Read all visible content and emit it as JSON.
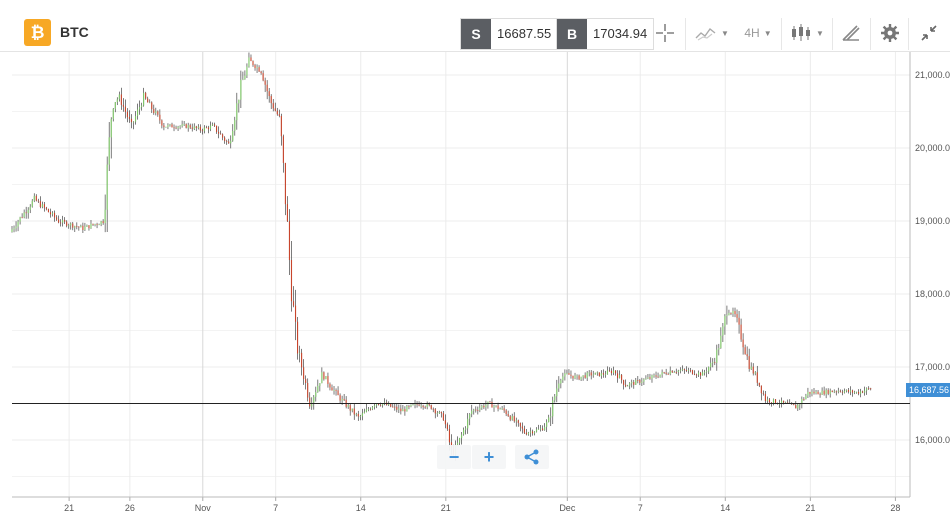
{
  "toolbar": {
    "logo_glyph": "₿",
    "symbol": "BTC",
    "sell_tag": "S",
    "sell_price": "16687.55",
    "buy_tag": "B",
    "buy_price": "17034.94",
    "timeframe": "4H",
    "icons": [
      "crosshair-icon",
      "compare-icon",
      "timeframe-selector",
      "candlestick-icon",
      "drawing-icon",
      "settings-icon",
      "collapse-icon"
    ]
  },
  "zoom": {
    "minus": "−",
    "plus": "+"
  },
  "current_price_label": "16,687.56",
  "chart_data": {
    "type": "candlestick",
    "x_ticks": [
      {
        "label": "21",
        "day": -11
      },
      {
        "label": "26",
        "day": -6
      },
      {
        "label": "Nov",
        "day": 0
      },
      {
        "label": "7",
        "day": 6
      },
      {
        "label": "14",
        "day": 13
      },
      {
        "label": "21",
        "day": 20
      },
      {
        "label": "Dec",
        "day": 30
      },
      {
        "label": "7",
        "day": 36
      },
      {
        "label": "14",
        "day": 43
      },
      {
        "label": "21",
        "day": 50
      },
      {
        "label": "28",
        "day": 57
      }
    ],
    "y_ticks": [
      "16,000.00",
      "17,000.00",
      "18,000.00",
      "19,000.00",
      "20,000.00",
      "21,000.00"
    ],
    "ylim": [
      15200,
      21300
    ],
    "xlim_days": [
      -15.7,
      58.2
    ],
    "horizontal_line": 16500,
    "current_price": 16687.56,
    "colors": {
      "up": "#7cc665",
      "down": "#c8452c",
      "grid": "#ececec",
      "line": "#222222"
    },
    "path_days": [
      -15.7,
      -13.7,
      -11.7,
      -9.7,
      -8.0,
      -7.3,
      -6.7,
      -5.7,
      -4.7,
      -3.0,
      -2.0,
      -1.0,
      0,
      1.0,
      2.3,
      3.3,
      4.0,
      5.0,
      5.7,
      6.5,
      7.1,
      7.4,
      7.9,
      9.0,
      10.0,
      11.3,
      13.0,
      14.3,
      15.0,
      16.5,
      18.0,
      19.0,
      20.0,
      20.7,
      21.3,
      22.3,
      23.7,
      25.0,
      26.7,
      28.0,
      28.6,
      29.5,
      30.2,
      31.0,
      32.0,
      33.0,
      34.0,
      35.0,
      36.0,
      37.0,
      38.7,
      40.0,
      41.3,
      42.3,
      42.9,
      43.3,
      44.0,
      44.5,
      45.2,
      45.6,
      46.5,
      48.0,
      49.0,
      50.0,
      51.0,
      52.5,
      54.0,
      55.0
    ],
    "path_prices": [
      18850,
      19300,
      19000,
      18900,
      19000,
      20600,
      20700,
      20300,
      20700,
      20300,
      20300,
      20300,
      20250,
      20300,
      20050,
      20850,
      21200,
      21050,
      20650,
      20400,
      19000,
      18200,
      17300,
      16500,
      16900,
      16600,
      16300,
      16500,
      16500,
      16400,
      16500,
      16450,
      16300,
      15800,
      16000,
      16400,
      16500,
      16400,
      16100,
      16150,
      16250,
      16850,
      16900,
      16850,
      16900,
      16900,
      16950,
      16750,
      16800,
      16850,
      16950,
      16950,
      16900,
      17100,
      17450,
      17800,
      17700,
      17400,
      17000,
      16900,
      16550,
      16500,
      16450,
      16650,
      16650,
      16680,
      16650,
      16700
    ]
  }
}
